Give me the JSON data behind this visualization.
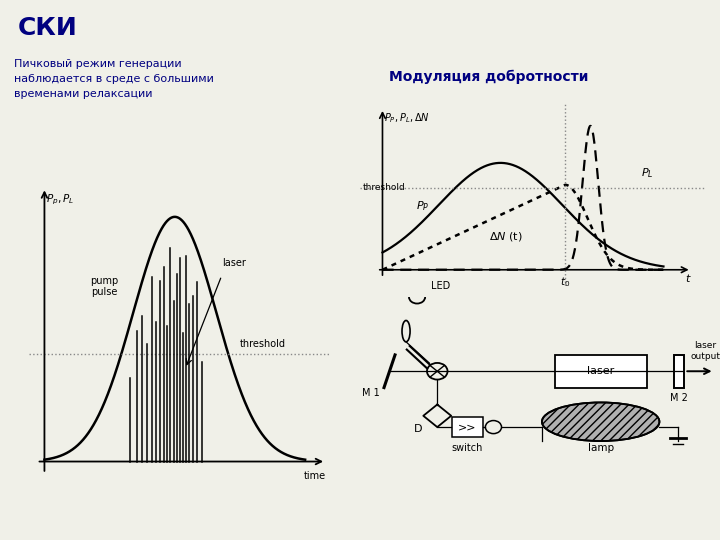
{
  "title": "СКИ",
  "title_bg": "#ccff00",
  "title_color": "#000080",
  "bg_color": "#f0f0e8",
  "left_title": "Пичковый режим генерации\nнаблюдается в среде с большими\nвременами релаксации",
  "right_title": "Модуляция добротности",
  "text_color": "#000080"
}
